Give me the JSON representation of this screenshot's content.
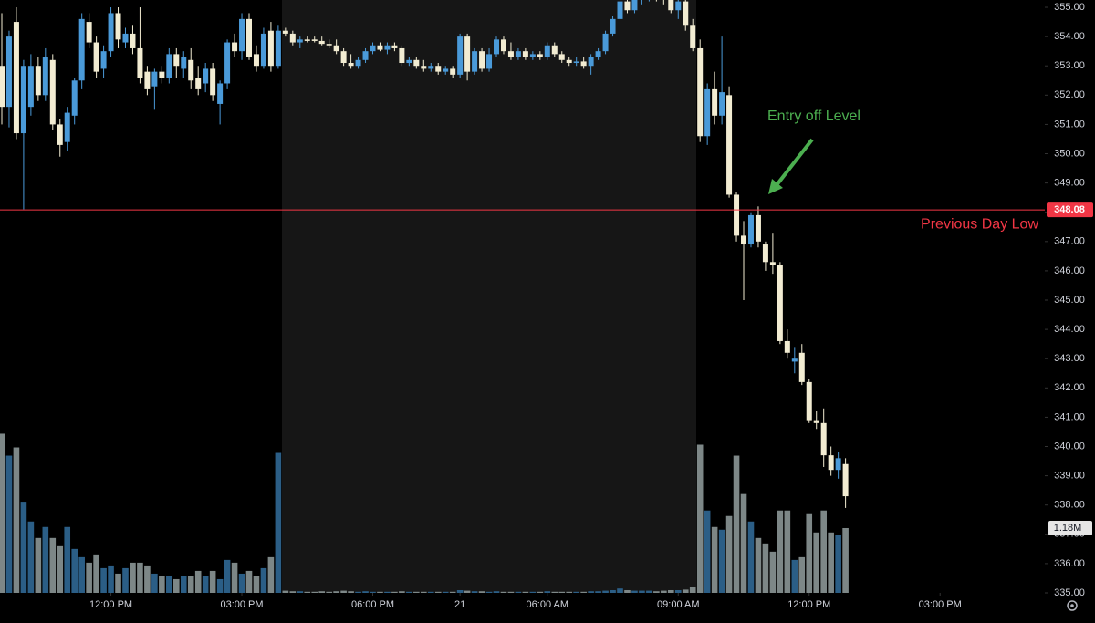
{
  "chart_data": {
    "type": "candlestick",
    "up_color": "#4a9ad9",
    "down_color": "#f2ecd2",
    "volume_up_color": "#2b5e86",
    "volume_down_color": "#7d8787",
    "ylim": [
      335,
      355.25
    ],
    "yticks": [
      {
        "value": 335,
        "label": "335.00"
      },
      {
        "value": 336,
        "label": "336.00"
      },
      {
        "value": 337,
        "label": "337.00"
      },
      {
        "value": 338,
        "label": "338.00"
      },
      {
        "value": 339,
        "label": "339.00"
      },
      {
        "value": 340,
        "label": "340.00"
      },
      {
        "value": 341,
        "label": "341.00"
      },
      {
        "value": 342,
        "label": "342.00"
      },
      {
        "value": 343,
        "label": "343.00"
      },
      {
        "value": 344,
        "label": "344.00"
      },
      {
        "value": 345,
        "label": "345.00"
      },
      {
        "value": 346,
        "label": "346.00"
      },
      {
        "value": 347,
        "label": "347.00"
      },
      {
        "value": 348,
        "label": "348.00"
      },
      {
        "value": 349,
        "label": "349.00"
      },
      {
        "value": 350,
        "label": "350.00"
      },
      {
        "value": 351,
        "label": "351.00"
      },
      {
        "value": 352,
        "label": "352.00"
      },
      {
        "value": 353,
        "label": "353.00"
      },
      {
        "value": 354,
        "label": "354.00"
      },
      {
        "value": 355,
        "label": "355.00"
      }
    ],
    "xlim": [
      -0.25,
      143.4
    ],
    "xticks": [
      {
        "value": 15,
        "label": "12:00 PM"
      },
      {
        "value": 33,
        "label": "03:00 PM"
      },
      {
        "value": 51,
        "label": "06:00 PM"
      },
      {
        "value": 63,
        "label": "21"
      },
      {
        "value": 75,
        "label": "06:00 AM"
      },
      {
        "value": 93,
        "label": "09:00 AM"
      },
      {
        "value": 111,
        "label": "12:00 PM"
      },
      {
        "value": 129,
        "label": "03:00 PM"
      }
    ],
    "volume_ylim": [
      0,
      10800000
    ],
    "open": [
      353.0,
      351.6,
      354.5,
      350.7,
      351.6,
      353.0,
      352.0,
      353.2,
      351.0,
      350.4,
      351.3,
      352.5,
      354.5,
      353.8,
      352.9,
      353.5,
      354.8,
      353.8,
      354.1,
      353.6,
      352.8,
      352.3,
      352.8,
      352.6,
      353.4,
      352.9,
      353.2,
      352.6,
      352.4,
      352.9,
      351.7,
      352.4,
      353.8,
      353.5,
      354.6,
      353.4,
      353.0,
      354.2,
      353.0,
      354.2,
      354.1,
      353.8,
      353.9,
      353.9,
      353.85,
      353.75,
      353.7,
      353.5,
      353.1,
      353.0,
      353.2,
      353.5,
      353.7,
      353.55,
      353.7,
      353.6,
      353.1,
      353.2,
      353.0,
      352.9,
      353.0,
      352.8,
      352.9,
      352.7,
      354.0,
      352.8,
      353.5,
      352.9,
      353.4,
      353.9,
      353.5,
      353.3,
      353.5,
      353.3,
      353.4,
      353.3,
      353.7,
      353.4,
      353.2,
      353.1,
      353.15,
      353.0,
      353.3,
      353.5,
      354.1,
      354.6,
      355.2,
      354.9,
      355.3,
      355.4,
      355.5,
      355.4,
      355.3,
      354.9,
      355.2,
      354.4,
      353.6,
      350.6,
      352.2,
      351.3,
      352.0,
      348.6,
      347.2,
      346.9,
      347.9,
      346.9,
      346.3,
      346.2,
      343.6,
      342.9,
      343.2,
      342.2,
      340.9,
      340.8,
      339.7,
      339.2,
      339.4
    ],
    "high": [
      354.8,
      354.2,
      355.0,
      353.2,
      353.4,
      353.3,
      353.6,
      353.4,
      351.2,
      351.6,
      352.6,
      354.8,
      354.8,
      354.0,
      353.7,
      355.0,
      355.0,
      354.3,
      354.4,
      355.0,
      353.0,
      352.9,
      353.0,
      353.6,
      353.6,
      353.5,
      353.6,
      353.0,
      353.1,
      353.1,
      352.5,
      353.9,
      354.1,
      354.8,
      354.8,
      353.7,
      354.3,
      354.5,
      354.4,
      354.3,
      354.2,
      354.0,
      354.0,
      354.0,
      354.0,
      353.9,
      353.9,
      353.6,
      353.4,
      353.3,
      353.6,
      353.8,
      353.8,
      353.8,
      353.8,
      353.7,
      353.3,
      353.3,
      353.2,
      353.1,
      353.1,
      353.0,
      353.0,
      354.1,
      354.1,
      353.6,
      353.6,
      353.6,
      354.0,
      354.0,
      353.8,
      353.6,
      353.6,
      353.5,
      353.5,
      353.8,
      353.8,
      353.5,
      353.3,
      353.3,
      353.3,
      353.4,
      353.6,
      354.2,
      354.7,
      355.3,
      355.3,
      355.3,
      355.6,
      355.7,
      355.6,
      355.5,
      355.4,
      355.3,
      355.3,
      354.6,
      353.9,
      352.4,
      352.8,
      354.0,
      352.3,
      348.7,
      347.7,
      348.0,
      348.2,
      347.0,
      347.3,
      346.3,
      344.0,
      343.4,
      343.5,
      342.3,
      341.2,
      341.3,
      340.0,
      339.8,
      339.6
    ],
    "low": [
      351.0,
      350.9,
      350.5,
      348.1,
      351.3,
      351.8,
      351.8,
      350.8,
      349.9,
      350.1,
      351.0,
      352.2,
      353.6,
      352.6,
      352.6,
      353.3,
      353.6,
      353.6,
      353.4,
      352.4,
      352.0,
      351.5,
      352.4,
      352.4,
      352.6,
      352.6,
      352.2,
      352.0,
      352.1,
      351.8,
      351.0,
      352.2,
      353.3,
      353.2,
      353.2,
      352.8,
      352.9,
      352.8,
      352.9,
      354.0,
      353.7,
      353.6,
      353.8,
      353.8,
      353.7,
      353.6,
      353.4,
      353.0,
      352.9,
      352.9,
      353.1,
      353.4,
      353.5,
      353.4,
      353.5,
      353.0,
      353.0,
      352.9,
      352.8,
      352.8,
      352.7,
      352.7,
      352.6,
      352.6,
      352.5,
      352.7,
      352.8,
      352.8,
      353.3,
      353.4,
      353.2,
      353.2,
      353.2,
      353.2,
      353.2,
      353.2,
      353.3,
      353.1,
      353.0,
      353.0,
      352.9,
      352.7,
      353.2,
      353.4,
      354.0,
      354.5,
      354.8,
      354.8,
      355.1,
      355.2,
      355.2,
      355.1,
      354.8,
      354.6,
      354.2,
      353.5,
      350.4,
      350.3,
      351.0,
      351.0,
      348.5,
      347.0,
      345.0,
      346.8,
      346.8,
      346.0,
      345.9,
      343.5,
      343.0,
      342.5,
      342.1,
      340.8,
      340.6,
      339.3,
      339.0,
      338.9,
      337.9
    ],
    "close": [
      351.6,
      354.0,
      350.7,
      353.0,
      353.0,
      352.0,
      353.3,
      351.0,
      350.3,
      351.4,
      352.5,
      354.6,
      353.8,
      352.8,
      353.5,
      354.8,
      353.9,
      354.1,
      353.6,
      352.6,
      352.2,
      352.8,
      352.6,
      353.4,
      353.0,
      353.3,
      352.5,
      352.2,
      352.9,
      352.0,
      352.4,
      353.8,
      353.5,
      354.6,
      353.3,
      353.0,
      354.1,
      353.0,
      354.2,
      354.1,
      353.8,
      353.9,
      353.85,
      353.85,
      353.75,
      353.7,
      353.5,
      353.1,
      353.0,
      353.2,
      353.5,
      353.7,
      353.55,
      353.7,
      353.6,
      353.1,
      353.2,
      353.0,
      352.9,
      353.0,
      352.8,
      352.9,
      352.7,
      354.0,
      352.8,
      353.5,
      352.9,
      353.4,
      353.9,
      353.5,
      353.3,
      353.5,
      353.3,
      353.4,
      353.3,
      353.7,
      353.4,
      353.2,
      353.1,
      353.15,
      353.0,
      353.3,
      353.5,
      354.1,
      354.6,
      355.2,
      354.9,
      355.3,
      355.4,
      355.5,
      355.4,
      355.3,
      354.9,
      355.2,
      354.4,
      353.6,
      350.6,
      352.2,
      351.3,
      352.1,
      348.6,
      347.2,
      346.9,
      347.9,
      347.0,
      346.3,
      346.2,
      343.6,
      343.2,
      343.0,
      342.2,
      340.9,
      340.8,
      339.7,
      339.2,
      339.6,
      338.3
    ],
    "volume": [
      2900000.0,
      2500000.0,
      2650000.0,
      1660000.0,
      1300000.0,
      1000000.0,
      1200000.0,
      1000000.0,
      850000.0,
      1200000.0,
      800000.0,
      650000.0,
      550000.0,
      700000.0,
      450000.0,
      500000.0,
      350000.0,
      450000.0,
      550000.0,
      550000.0,
      500000.0,
      350000.0,
      300000.0,
      300000.0,
      250000.0,
      300000.0,
      300000.0,
      400000.0,
      300000.0,
      400000.0,
      250000.0,
      600000.0,
      550000.0,
      350000.0,
      400000.0,
      300000.0,
      450000.0,
      650000.0,
      2550000.0,
      40000.0,
      30000.0,
      30000.0,
      20000.0,
      20000.0,
      30000.0,
      20000.0,
      30000.0,
      40000.0,
      30000.0,
      20000.0,
      30000.0,
      20000.0,
      20000.0,
      20000.0,
      20000.0,
      30000.0,
      20000.0,
      20000.0,
      20000.0,
      20000.0,
      20000.0,
      20000.0,
      20000.0,
      50000.0,
      40000.0,
      30000.0,
      30000.0,
      20000.0,
      30000.0,
      20000.0,
      20000.0,
      20000.0,
      20000.0,
      20000.0,
      20000.0,
      30000.0,
      20000.0,
      20000.0,
      20000.0,
      20000.0,
      20000.0,
      30000.0,
      30000.0,
      40000.0,
      50000.0,
      80000.0,
      50000.0,
      40000.0,
      40000.0,
      40000.0,
      30000.0,
      40000.0,
      50000.0,
      50000.0,
      60000.0,
      100000.0,
      2700000.0,
      1500000.0,
      1200000.0,
      1150000.0,
      1400000.0,
      2500000.0,
      1800000.0,
      1300000.0,
      1000000.0,
      900000.0,
      750000.0,
      1500000.0,
      1500000.0,
      600000.0,
      650000.0,
      1450000.0,
      1100000.0,
      1500000.0,
      1100000.0,
      1050000.0,
      1180000.0
    ],
    "last_volume": {
      "value": 1180000,
      "label": "1.18M"
    },
    "level": {
      "value": 348.08,
      "name": "Previous Day Low",
      "color": "#f23645"
    },
    "annotation": {
      "text": "Entry off Level",
      "color": "#4caf50"
    }
  }
}
